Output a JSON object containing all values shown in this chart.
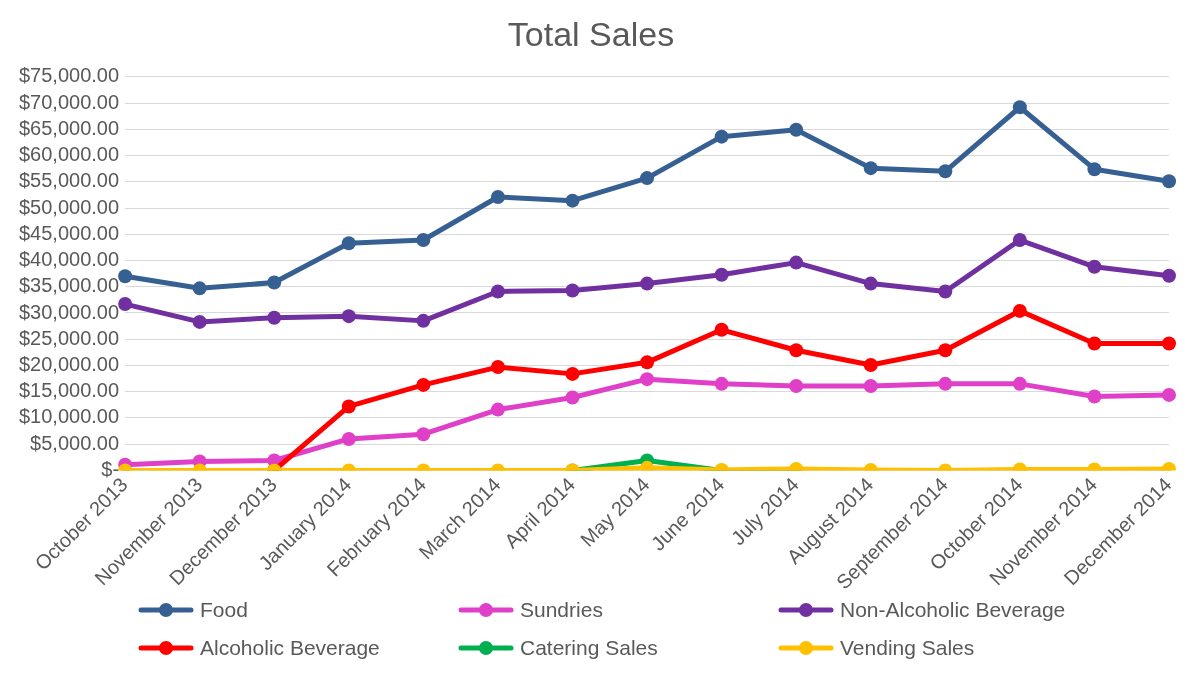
{
  "chart_data": {
    "type": "line",
    "title": "Total Sales",
    "categories": [
      "October 2013",
      "November 2013",
      "December 2013",
      "January 2014",
      "February 2014",
      "March 2014",
      "April 2014",
      "May 2014",
      "June 2014",
      "July 2014",
      "August 2014",
      "September 2014",
      "October 2014",
      "November 2014",
      "December 2014"
    ],
    "series": [
      {
        "name": "Food",
        "color": "#376092",
        "values": [
          37000,
          34700,
          35800,
          43300,
          43900,
          52100,
          51400,
          55700,
          63600,
          64900,
          57600,
          57000,
          69200,
          57400,
          55100
        ]
      },
      {
        "name": "Sundries",
        "color": "#e040c8",
        "values": [
          1100,
          1700,
          1900,
          6000,
          6900,
          11600,
          13900,
          17400,
          16500,
          16100,
          16100,
          16500,
          16500,
          14100,
          14400
        ]
      },
      {
        "name": "Non-Alcoholic Beverage",
        "color": "#7030a0",
        "values": [
          31700,
          28300,
          29100,
          29400,
          28500,
          34100,
          34300,
          35600,
          37300,
          39600,
          35600,
          34100,
          43900,
          38800,
          37100
        ]
      },
      {
        "name": "Alcoholic Beverage",
        "color": "#ff0000",
        "values": [
          null,
          null,
          0,
          12200,
          16300,
          19700,
          18400,
          20600,
          26800,
          22900,
          20100,
          22900,
          30400,
          24200,
          24200
        ]
      },
      {
        "name": "Catering Sales",
        "color": "#00b050",
        "values": [
          null,
          null,
          null,
          null,
          null,
          null,
          0,
          1900,
          0,
          0,
          null,
          null,
          null,
          null,
          null
        ]
      },
      {
        "name": "Vending Sales",
        "color": "#ffc000",
        "values": [
          0,
          0,
          0,
          0,
          0,
          0,
          0,
          500,
          100,
          300,
          100,
          0,
          200,
          200,
          300
        ]
      }
    ],
    "ylim": [
      0,
      75000
    ],
    "yticks": [
      {
        "value": 0,
        "label": "$-"
      },
      {
        "value": 5000,
        "label": "$5,000.00"
      },
      {
        "value": 10000,
        "label": "$10,000.00"
      },
      {
        "value": 15000,
        "label": "$15,000.00"
      },
      {
        "value": 20000,
        "label": "$20,000.00"
      },
      {
        "value": 25000,
        "label": "$25,000.00"
      },
      {
        "value": 30000,
        "label": "$30,000.00"
      },
      {
        "value": 35000,
        "label": "$35,000.00"
      },
      {
        "value": 40000,
        "label": "$40,000.00"
      },
      {
        "value": 45000,
        "label": "$45,000.00"
      },
      {
        "value": 50000,
        "label": "$50,000.00"
      },
      {
        "value": 55000,
        "label": "$55,000.00"
      },
      {
        "value": 60000,
        "label": "$60,000.00"
      },
      {
        "value": 65000,
        "label": "$65,000.00"
      },
      {
        "value": 70000,
        "label": "$70,000.00"
      },
      {
        "value": 75000,
        "label": "$75,000.00"
      }
    ],
    "grid": "y",
    "legend": "bottom",
    "marker": "circle",
    "line_style": "solid"
  }
}
